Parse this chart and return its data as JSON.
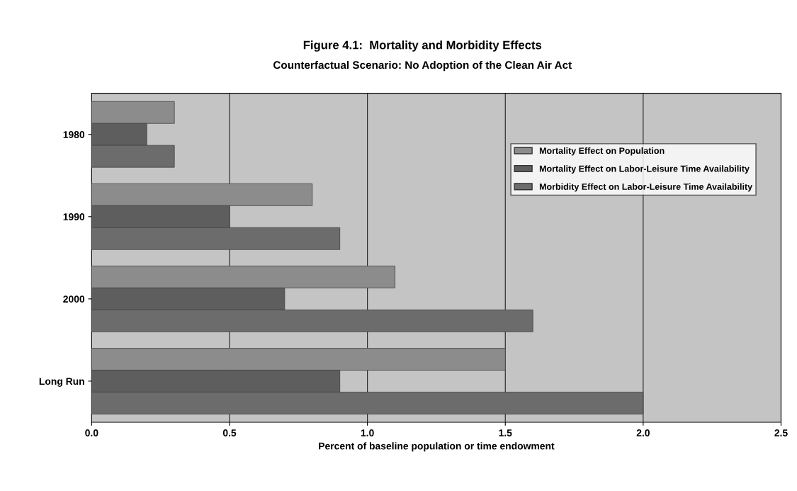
{
  "chart_data": {
    "type": "bar",
    "orientation": "horizontal",
    "title": "Figure 4.1:  Mortality and Morbidity Effects",
    "subtitle": "Counterfactual Scenario: No Adoption of the Clean Air Act",
    "xlabel": "Percent of baseline population or time endowment",
    "categories": [
      "1980",
      "1990",
      "2000",
      "Long Run"
    ],
    "series": [
      {
        "name": "Mortality Effect on Population",
        "color": "#8c8c8c",
        "values": [
          0.3,
          0.8,
          1.1,
          1.5
        ]
      },
      {
        "name": "Mortality Effect on Labor-Leisure Time Availability",
        "color": "#5e5e5e",
        "values": [
          0.2,
          0.5,
          0.7,
          0.9
        ]
      },
      {
        "name": "Morbidity Effect on Labor-Leisure Time Availability",
        "color": "#6c6c6c",
        "values": [
          0.3,
          0.9,
          1.6,
          2.0
        ]
      }
    ],
    "xlim": [
      0,
      2.5
    ],
    "xticks": [
      {
        "value": 0,
        "label": "0.0"
      },
      {
        "value": 0.5,
        "label": "0.5"
      },
      {
        "value": 1,
        "label": "1.0"
      },
      {
        "value": 1.5,
        "label": "1.5"
      },
      {
        "value": 2,
        "label": "2.0"
      },
      {
        "value": 2.5,
        "label": "2.5"
      }
    ],
    "grid": "x",
    "legend": "top right"
  }
}
